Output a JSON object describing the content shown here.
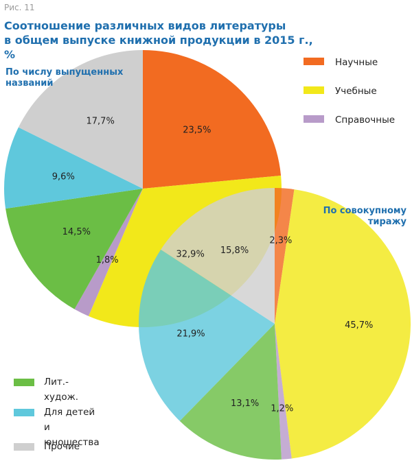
{
  "figure_label": "Рис. 11",
  "title_lines": [
    "Соотношение различных видов литературы",
    "в общем выпуске книжной продукции в 2015 г., %"
  ],
  "chart_data": [
    {
      "type": "pie",
      "title": "По числу выпущенных названий",
      "slices": [
        {
          "category": "Научные",
          "value": 23.5,
          "label": "23,5%",
          "color": "#f26b21"
        },
        {
          "category": "Учебные",
          "value": 32.9,
          "label": "32,9%",
          "color": "#f2e81a"
        },
        {
          "category": "Справочные",
          "value": 1.8,
          "label": "1,8%",
          "color": "#b89bc9"
        },
        {
          "category": "Лит.-худож.",
          "value": 14.5,
          "label": "14,5%",
          "color": "#6bbe45"
        },
        {
          "category": "Для детей и юношества",
          "value": 9.6,
          "label": "9,6%",
          "color": "#5fc8dc"
        },
        {
          "category": "Прочие",
          "value": 17.7,
          "label": "17,7%",
          "color": "#cfcfcf"
        }
      ]
    },
    {
      "type": "pie",
      "title": "По совокупному тиражу",
      "slices": [
        {
          "category": "Научные",
          "value": 2.3,
          "label": "2,3%",
          "color": "#f26b21"
        },
        {
          "category": "Учебные",
          "value": 45.7,
          "label": "45,7%",
          "color": "#f2e81a"
        },
        {
          "category": "Справочные",
          "value": 1.2,
          "label": "1,2%",
          "color": "#b89bc9"
        },
        {
          "category": "Лит.-худож.",
          "value": 13.1,
          "label": "13,1%",
          "color": "#6bbe45"
        },
        {
          "category": "Для детей и юношества",
          "value": 21.9,
          "label": "21,9%",
          "color": "#5fc8dc"
        },
        {
          "category": "Прочие",
          "value": 15.8,
          "label": "15,8%",
          "color": "#cfcfcf"
        }
      ]
    }
  ],
  "pie_captions": {
    "left": "По числу выпущенных названий",
    "right": "По совокупному тиражу"
  },
  "legend_top": [
    {
      "label": "Научные",
      "color": "#f26b21"
    },
    {
      "label": "Учебные",
      "color": "#f2e81a"
    },
    {
      "label": "Справочные",
      "color": "#b89bc9"
    }
  ],
  "legend_bottom": [
    {
      "label": "Лит.-худож.",
      "color": "#6bbe45"
    },
    {
      "label": "Для детей\nи юношества",
      "color": "#5fc8dc"
    },
    {
      "label": "Прочие",
      "color": "#cfcfcf"
    }
  ]
}
